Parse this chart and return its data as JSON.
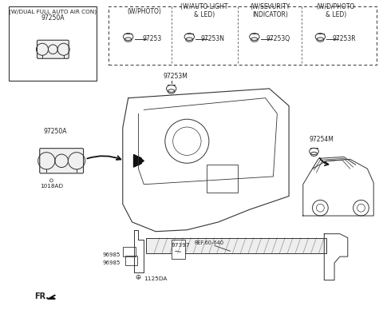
{
  "bg_color": "#ffffff",
  "line_color": "#333333",
  "text_color": "#222222",
  "labels": {
    "top_left_box": "(W/DUAL FULL AUTO AIR CON)",
    "part1_a": "97250A",
    "part1_b": "97250A",
    "part2": "1018AD",
    "part3": "97253M",
    "part4": "97254M",
    "part5": "97397",
    "part6a": "96985",
    "part6b": "96985",
    "part8": "1125DA",
    "ref": "REF.60-640",
    "fr": "FR.",
    "w_photo": "(W/PHOTO)",
    "w_photo_num": "97253",
    "w_auto": "(W/AUTO LIGHT\n& LED)",
    "w_auto_num": "97253N",
    "w_security": "(W/SEVURITY\nINDICATOR)",
    "w_security_num": "97253Q",
    "w_dphoto": "(W/D/PHOTO\n& LED)",
    "w_dphoto_num": "97253R"
  }
}
